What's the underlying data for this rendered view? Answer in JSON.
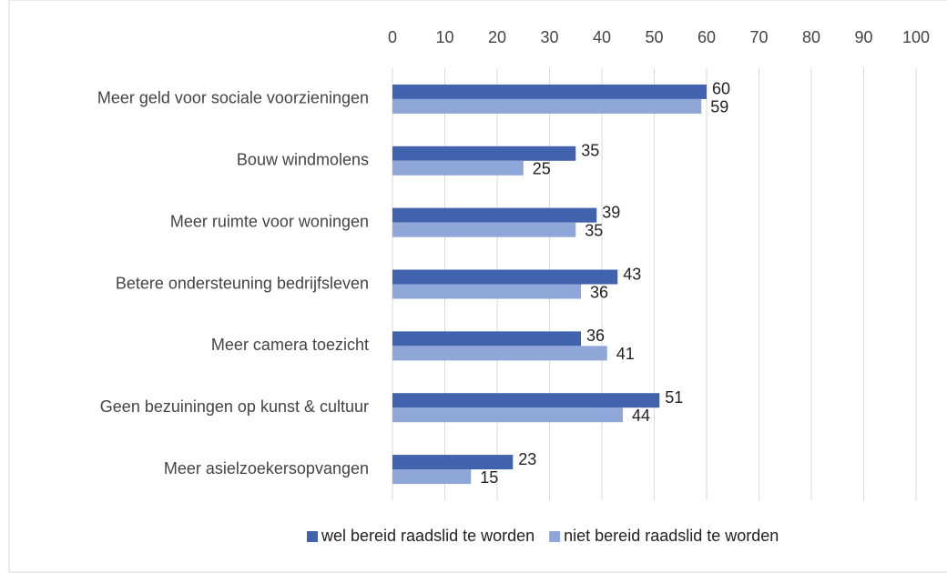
{
  "chart_data": {
    "type": "hbar",
    "categories": [
      "Meer geld voor sociale voorzieningen",
      "Bouw windmolens",
      "Meer ruimte voor woningen",
      "Betere ondersteuning bedrijfsleven",
      "Meer camera toezicht",
      "Geen bezuiningen op kunst & cultuur",
      "Meer asielzoekersopvangen"
    ],
    "series": [
      {
        "name": "wel bereid raadslid te worden",
        "color": "#4163ae",
        "values": [
          60,
          35,
          39,
          43,
          36,
          51,
          23
        ]
      },
      {
        "name": "niet bereid raadslid te worden",
        "color": "#8fa6d9",
        "values": [
          59,
          25,
          35,
          36,
          41,
          44,
          15
        ]
      }
    ],
    "xlim": [
      0,
      100
    ],
    "xticks": [
      0,
      10,
      20,
      30,
      40,
      50,
      60,
      70,
      80,
      90,
      100
    ],
    "grid": true,
    "legend": "bottom"
  }
}
